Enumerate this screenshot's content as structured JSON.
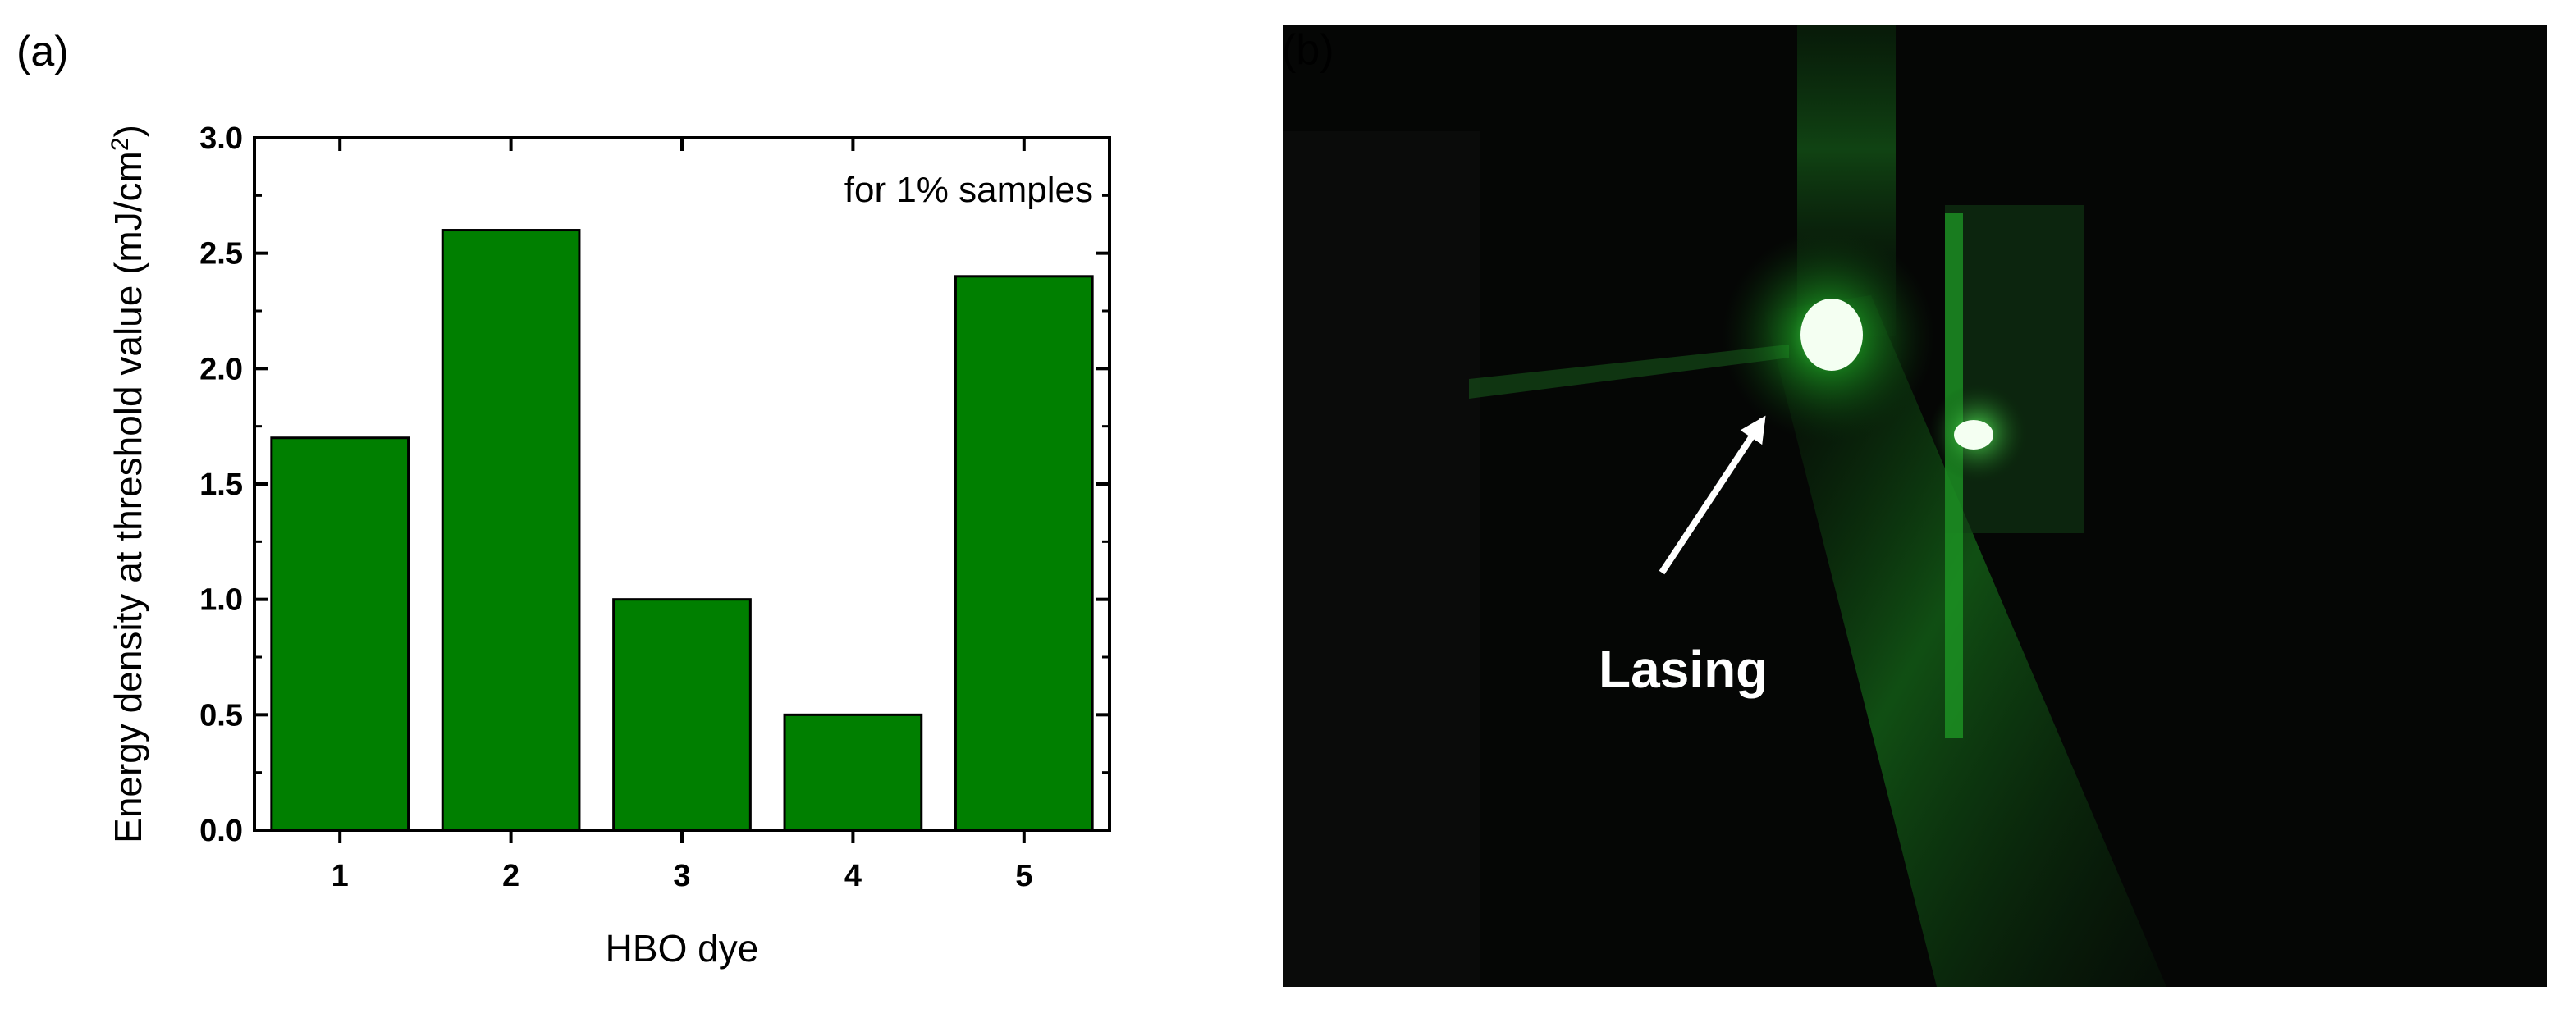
{
  "panel_a": {
    "label": "(a)"
  },
  "panel_b": {
    "label": "(b)",
    "annotation": "Lasing",
    "colors": {
      "background": "#050605",
      "laser": "#22c82a",
      "spot": "#f4fff2",
      "text": "#ffffff"
    }
  },
  "colors": {
    "bar_fill": "#007f00",
    "bar_stroke": "#000000",
    "axis": "#000000"
  },
  "chart_data": {
    "type": "bar",
    "title": "",
    "annotation": "for 1% samples",
    "xlabel": "HBO dye",
    "ylabel": "Energy density at threshold value (mJ/cm",
    "ylabel_superscript": "2",
    "ylabel_suffix": ")",
    "categories": [
      "1",
      "2",
      "3",
      "4",
      "5"
    ],
    "values": [
      1.7,
      2.6,
      1.0,
      0.5,
      2.4
    ],
    "ylim": [
      0.0,
      3.0
    ],
    "yticks": [
      "0.0",
      "0.5",
      "1.0",
      "1.5",
      "2.0",
      "2.5",
      "3.0"
    ],
    "grid": false,
    "legend": "none"
  }
}
